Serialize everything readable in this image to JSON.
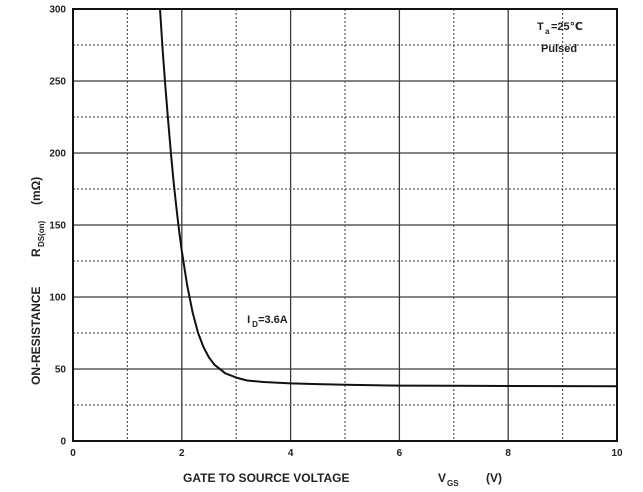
{
  "chart_data": {
    "type": "line",
    "title": "",
    "xlabel": {
      "main": "GATE TO SOURCE VOLTAGE",
      "symbol": "V",
      "subscript": "GS",
      "unit": "(V)"
    },
    "ylabel": {
      "main": "ON-RESISTANCE",
      "symbol": "R",
      "subscript": "DS(on)",
      "unit": "(mΩ)"
    },
    "xlim": [
      0,
      10
    ],
    "ylim": [
      0,
      300
    ],
    "xticks": [
      "0",
      "2",
      "4",
      "6",
      "8",
      "10"
    ],
    "yticks": [
      "0",
      "50",
      "100",
      "150",
      "200",
      "250",
      "300"
    ],
    "grid": true,
    "series": [
      {
        "x": [
          1.6,
          1.65,
          1.7,
          1.75,
          1.8,
          1.85,
          1.9,
          1.95,
          2.0,
          2.1,
          2.2,
          2.3,
          2.4,
          2.5,
          2.6,
          2.8,
          3.0,
          3.2,
          3.5,
          4.0,
          4.5,
          5.0,
          6.0,
          7.0,
          8.0,
          9.0,
          10.0
        ],
        "y": [
          300,
          270,
          245,
          222,
          200,
          180,
          162,
          146,
          132,
          108,
          89,
          75,
          65,
          58,
          53,
          47,
          44,
          42,
          41,
          40,
          39.5,
          39,
          38.5,
          38.3,
          38.2,
          38.1,
          38
        ]
      }
    ],
    "annotations": {
      "temperature": {
        "symbol": "T",
        "subscript": "a",
        "value": "=25℃"
      },
      "mode": "Pulsed",
      "current": {
        "symbol": "I",
        "subscript": "D",
        "value": "=3.6A",
        "at": [
          3.2,
          82
        ]
      }
    }
  }
}
